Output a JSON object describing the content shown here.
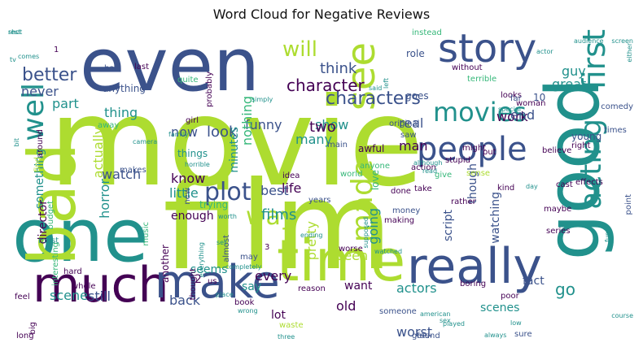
{
  "title": "Word Cloud for Negative Reviews",
  "palette": {
    "dark_purple": "#440154",
    "indigo": "#3b528b",
    "teal": "#21918c",
    "green": "#35b779",
    "lime": "#addc30"
  },
  "words": [
    {
      "text": "movie",
      "size": 150,
      "color": "#addc30"
    },
    {
      "text": "film",
      "size": 150,
      "color": "#addc30"
    },
    {
      "text": "even",
      "size": 90,
      "color": "#3b528b"
    },
    {
      "text": "one",
      "size": 90,
      "color": "#21918c"
    },
    {
      "text": "good",
      "size": 90,
      "color": "#21918c"
    },
    {
      "text": "bad",
      "size": 80,
      "color": "#addc30"
    },
    {
      "text": "time",
      "size": 70,
      "color": "#addc30"
    },
    {
      "text": "really",
      "size": 60,
      "color": "#3b528b"
    },
    {
      "text": "much",
      "size": 60,
      "color": "#440154"
    },
    {
      "text": "make",
      "size": 56,
      "color": "#3b528b"
    },
    {
      "text": "story",
      "size": 48,
      "color": "#3b528b"
    },
    {
      "text": "see",
      "size": 48,
      "color": "#addc30"
    },
    {
      "text": "people",
      "size": 40,
      "color": "#3b528b"
    },
    {
      "text": "first",
      "size": 38,
      "color": "#21918c"
    },
    {
      "text": "acting",
      "size": 36,
      "color": "#21918c"
    },
    {
      "text": "made",
      "size": 36,
      "color": "#addc30"
    },
    {
      "text": "well",
      "size": 36,
      "color": "#21918c"
    },
    {
      "text": "movies",
      "size": 32,
      "color": "#21918c"
    },
    {
      "text": "plot",
      "size": 30,
      "color": "#3b528b"
    },
    {
      "text": "way",
      "size": 30,
      "color": "#addc30"
    },
    {
      "text": "will",
      "size": 26,
      "color": "#addc30"
    },
    {
      "text": "characters",
      "size": 22,
      "color": "#3b528b"
    },
    {
      "text": "character",
      "size": 20,
      "color": "#440154"
    },
    {
      "text": "better",
      "size": 22,
      "color": "#3b528b"
    },
    {
      "text": "think",
      "size": 18,
      "color": "#3b528b"
    },
    {
      "text": "never",
      "size": 16,
      "color": "#3b528b"
    },
    {
      "text": "guy",
      "size": 16,
      "color": "#21918c"
    },
    {
      "text": "great",
      "size": 16,
      "color": "#21918c"
    },
    {
      "text": "part",
      "size": 16,
      "color": "#21918c"
    },
    {
      "text": "work",
      "size": 16,
      "color": "#440154"
    },
    {
      "text": "anything",
      "size": 12,
      "color": "#3b528b"
    },
    {
      "text": "show",
      "size": 16,
      "color": "#21918c"
    },
    {
      "text": "two",
      "size": 18,
      "color": "#440154"
    },
    {
      "text": "funny",
      "size": 16,
      "color": "#3b528b"
    },
    {
      "text": "look",
      "size": 18,
      "color": "#3b528b"
    },
    {
      "text": "real",
      "size": 16,
      "color": "#3b528b"
    },
    {
      "text": "end",
      "size": 16,
      "color": "#3b528b"
    },
    {
      "text": "man",
      "size": 16,
      "color": "#440154"
    },
    {
      "text": "now",
      "size": 16,
      "color": "#3b528b"
    },
    {
      "text": "watch",
      "size": 16,
      "color": "#3b528b"
    },
    {
      "text": "life",
      "size": 16,
      "color": "#440154"
    },
    {
      "text": "best",
      "size": 16,
      "color": "#3b528b"
    },
    {
      "text": "films",
      "size": 18,
      "color": "#21918c"
    },
    {
      "text": "know",
      "size": 16,
      "color": "#440154"
    },
    {
      "text": "little",
      "size": 16,
      "color": "#21918c"
    },
    {
      "text": "enough",
      "size": 14,
      "color": "#440154"
    },
    {
      "text": "many",
      "size": 16,
      "color": "#21918c"
    },
    {
      "text": "actually",
      "size": 16,
      "color": "#addc30"
    },
    {
      "text": "something",
      "size": 14,
      "color": "#21918c"
    },
    {
      "text": "thing",
      "size": 16,
      "color": "#21918c"
    },
    {
      "text": "minutes",
      "size": 14,
      "color": "#21918c"
    },
    {
      "text": "nothing",
      "size": 16,
      "color": "#35b779"
    },
    {
      "text": "horror",
      "size": 16,
      "color": "#21918c"
    },
    {
      "text": "director",
      "size": 14,
      "color": "#440154"
    },
    {
      "text": "scene",
      "size": 16,
      "color": "#21918c"
    },
    {
      "text": "still",
      "size": 16,
      "color": "#3b528b"
    },
    {
      "text": "seems",
      "size": 14,
      "color": "#21918c"
    },
    {
      "text": "say",
      "size": 14,
      "color": "#21918c"
    },
    {
      "text": "back",
      "size": 16,
      "color": "#3b528b"
    },
    {
      "text": "every",
      "size": 16,
      "color": "#440154"
    },
    {
      "text": "seen",
      "size": 16,
      "color": "#addc30"
    },
    {
      "text": "pretty",
      "size": 16,
      "color": "#addc30"
    },
    {
      "text": "going",
      "size": 16,
      "color": "#21918c"
    },
    {
      "text": "though",
      "size": 14,
      "color": "#3b528b"
    },
    {
      "text": "script",
      "size": 14,
      "color": "#3b528b"
    },
    {
      "text": "watching",
      "size": 14,
      "color": "#3b528b"
    },
    {
      "text": "want",
      "size": 14,
      "color": "#440154"
    },
    {
      "text": "actors",
      "size": 16,
      "color": "#21918c"
    },
    {
      "text": "old",
      "size": 16,
      "color": "#440154"
    },
    {
      "text": "worst",
      "size": 16,
      "color": "#3b528b"
    },
    {
      "text": "scenes",
      "size": 14,
      "color": "#21918c"
    },
    {
      "text": "lot",
      "size": 14,
      "color": "#440154"
    },
    {
      "text": "go",
      "size": 20,
      "color": "#21918c"
    },
    {
      "text": "fact",
      "size": 14,
      "color": "#3b528b"
    },
    {
      "text": "another",
      "size": 12,
      "color": "#440154"
    },
    {
      "text": "love",
      "size": 12,
      "color": "#35b779"
    },
    {
      "text": "interesting",
      "size": 10,
      "color": "#35b779"
    },
    {
      "text": "trying",
      "size": 12,
      "color": "#35b779"
    },
    {
      "text": "10",
      "size": 12,
      "color": "#3b528b"
    },
    {
      "text": "role",
      "size": 12,
      "color": "#3b528b"
    },
    {
      "text": "instead",
      "size": 10,
      "color": "#35b779"
    },
    {
      "text": "budget",
      "size": 10,
      "color": "#35b779"
    },
    {
      "text": "quite",
      "size": 10,
      "color": "#35b779"
    },
    {
      "text": "last",
      "size": 10,
      "color": "#440154"
    },
    {
      "text": "probably",
      "size": 10,
      "color": "#440154"
    },
    {
      "text": "terrible",
      "size": 10,
      "color": "#35b779"
    },
    {
      "text": "comedy",
      "size": 10,
      "color": "#3b528b"
    },
    {
      "text": "woman",
      "size": 10,
      "color": "#440154"
    },
    {
      "text": "without",
      "size": 10,
      "color": "#440154"
    },
    {
      "text": "looks",
      "size": 10,
      "color": "#440154"
    },
    {
      "text": "goes",
      "size": 12,
      "color": "#3b528b"
    },
    {
      "text": "far",
      "size": 10,
      "color": "#3b528b"
    },
    {
      "text": "might",
      "size": 10,
      "color": "#440154"
    },
    {
      "text": "young",
      "size": 12,
      "color": "#3b528b"
    },
    {
      "text": "stupid",
      "size": 10,
      "color": "#440154"
    },
    {
      "text": "believe",
      "size": 10,
      "color": "#440154"
    },
    {
      "text": "times",
      "size": 10,
      "color": "#3b528b"
    },
    {
      "text": "awful",
      "size": 12,
      "color": "#440154"
    },
    {
      "text": "action",
      "size": 10,
      "color": "#440154"
    },
    {
      "text": "anyone",
      "size": 10,
      "color": "#35b779"
    },
    {
      "text": "main",
      "size": 10,
      "color": "#3b528b"
    },
    {
      "text": "right",
      "size": 10,
      "color": "#440154"
    },
    {
      "text": "put",
      "size": 10,
      "color": "#440154"
    },
    {
      "text": "cast",
      "size": 10,
      "color": "#440154"
    },
    {
      "text": "effects",
      "size": 10,
      "color": "#440154"
    },
    {
      "text": "half",
      "size": 10,
      "color": "#3b528b"
    },
    {
      "text": "girl",
      "size": 10,
      "color": "#440154"
    },
    {
      "text": "away",
      "size": 10,
      "color": "#35b779"
    },
    {
      "text": "makes",
      "size": 10,
      "color": "#3b528b"
    },
    {
      "text": "things",
      "size": 12,
      "color": "#21918c"
    },
    {
      "text": "around",
      "size": 10,
      "color": "#440154"
    },
    {
      "text": "find",
      "size": 10,
      "color": "#addc30"
    },
    {
      "text": "saw",
      "size": 10,
      "color": "#3b528b"
    },
    {
      "text": "take",
      "size": 10,
      "color": "#440154"
    },
    {
      "text": "idea",
      "size": 10,
      "color": "#440154"
    },
    {
      "text": "world",
      "size": 10,
      "color": "#35b779"
    },
    {
      "text": "done",
      "size": 10,
      "color": "#440154"
    },
    {
      "text": "rather",
      "size": 10,
      "color": "#440154"
    },
    {
      "text": "kind",
      "size": 10,
      "color": "#440154"
    },
    {
      "text": "maybe",
      "size": 10,
      "color": "#440154"
    },
    {
      "text": "give",
      "size": 10,
      "color": "#35b779"
    },
    {
      "text": "sense",
      "size": 10,
      "color": "#addc30"
    },
    {
      "text": "years",
      "size": 10,
      "color": "#3b528b"
    },
    {
      "text": "music",
      "size": 10,
      "color": "#35b779"
    },
    {
      "text": "new",
      "size": 10,
      "color": "#3b528b"
    },
    {
      "text": "hard",
      "size": 10,
      "color": "#440154"
    },
    {
      "text": "whole",
      "size": 10,
      "color": "#440154"
    },
    {
      "text": "must",
      "size": 10,
      "color": "#21918c"
    },
    {
      "text": "thought",
      "size": 10,
      "color": "#440154"
    },
    {
      "text": "almost",
      "size": 10,
      "color": "#3b528b"
    },
    {
      "text": "worse",
      "size": 10,
      "color": "#440154"
    },
    {
      "text": "money",
      "size": 10,
      "color": "#3b528b"
    },
    {
      "text": "making",
      "size": 10,
      "color": "#440154"
    },
    {
      "text": "series",
      "size": 10,
      "color": "#440154"
    },
    {
      "text": "point",
      "size": 10,
      "color": "#3b528b"
    },
    {
      "text": "reason",
      "size": 10,
      "color": "#440154"
    },
    {
      "text": "boring",
      "size": 10,
      "color": "#440154"
    },
    {
      "text": "poor",
      "size": 10,
      "color": "#440154"
    },
    {
      "text": "book",
      "size": 10,
      "color": "#440154"
    },
    {
      "text": "someone",
      "size": 10,
      "color": "#3b528b"
    },
    {
      "text": "waste",
      "size": 10,
      "color": "#addc30"
    },
    {
      "text": "gets",
      "size": 10,
      "color": "#3b528b"
    },
    {
      "text": "found",
      "size": 10,
      "color": "#3b528b"
    },
    {
      "text": "sure",
      "size": 10,
      "color": "#3b528b"
    },
    {
      "text": "long",
      "size": 10,
      "color": "#440154"
    },
    {
      "text": "big",
      "size": 10,
      "color": "#440154"
    },
    {
      "text": "feel",
      "size": 10,
      "color": "#440154"
    },
    {
      "text": "may",
      "size": 10,
      "color": "#3b528b"
    },
    {
      "text": "original",
      "size": 10,
      "color": "#3b528b"
    },
    {
      "text": "3",
      "size": 10,
      "color": "#440154"
    },
    {
      "text": "2",
      "size": 14,
      "color": "#440154"
    },
    {
      "text": "1",
      "size": 10,
      "color": "#440154"
    },
    {
      "text": "actor",
      "size": 8,
      "color": "#21918c"
    },
    {
      "text": "audience",
      "size": 8,
      "color": "#21918c"
    },
    {
      "text": "screen",
      "size": 8,
      "color": "#21918c"
    },
    {
      "text": "either",
      "size": 8,
      "color": "#21918c"
    },
    {
      "text": "tv",
      "size": 8,
      "color": "#21918c"
    },
    {
      "text": "comes",
      "size": 8,
      "color": "#21918c"
    },
    {
      "text": "said",
      "size": 8,
      "color": "#21918c"
    },
    {
      "text": "left",
      "size": 8,
      "color": "#21918c"
    },
    {
      "text": "special",
      "size": 8,
      "color": "#21918c"
    },
    {
      "text": "camera",
      "size": 8,
      "color": "#21918c"
    },
    {
      "text": "simply",
      "size": 8,
      "color": "#21918c"
    },
    {
      "text": "family",
      "size": 8,
      "color": "#21918c"
    },
    {
      "text": "bit",
      "size": 8,
      "color": "#21918c"
    },
    {
      "text": "although",
      "size": 8,
      "color": "#21918c"
    },
    {
      "text": "read",
      "size": 8,
      "color": "#21918c"
    },
    {
      "text": "horrible",
      "size": 8,
      "color": "#21918c"
    },
    {
      "text": "day",
      "size": 8,
      "color": "#21918c"
    },
    {
      "text": "fun",
      "size": 8,
      "color": "#21918c"
    },
    {
      "text": "supposed",
      "size": 8,
      "color": "#21918c"
    },
    {
      "text": "worth",
      "size": 8,
      "color": "#21918c"
    },
    {
      "text": "everything",
      "size": 8,
      "color": "#21918c"
    },
    {
      "text": "completely",
      "size": 8,
      "color": "#21918c"
    },
    {
      "text": "ending",
      "size": 8,
      "color": "#21918c"
    },
    {
      "text": "set",
      "size": 8,
      "color": "#21918c"
    },
    {
      "text": "us",
      "size": 10,
      "color": "#440154"
    },
    {
      "text": "place",
      "size": 8,
      "color": "#21918c"
    },
    {
      "text": "wrong",
      "size": 8,
      "color": "#21918c"
    },
    {
      "text": "watched",
      "size": 8,
      "color": "#21918c"
    },
    {
      "text": "american",
      "size": 8,
      "color": "#21918c"
    },
    {
      "text": "sex",
      "size": 8,
      "color": "#21918c"
    },
    {
      "text": "always",
      "size": 8,
      "color": "#21918c"
    },
    {
      "text": "low",
      "size": 8,
      "color": "#21918c"
    },
    {
      "text": "course",
      "size": 8,
      "color": "#21918c"
    },
    {
      "text": "three",
      "size": 8,
      "color": "#21918c"
    },
    {
      "text": "played",
      "size": 8,
      "color": "#21918c"
    },
    {
      "text": "shot",
      "size": 8,
      "color": "#21918c"
    },
    {
      "text": "rest",
      "size": 8,
      "color": "#21918c"
    }
  ]
}
